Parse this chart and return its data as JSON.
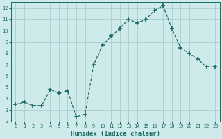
{
  "x": [
    0,
    1,
    2,
    3,
    4,
    5,
    6,
    7,
    8,
    9,
    10,
    11,
    12,
    13,
    14,
    15,
    16,
    17,
    18,
    19,
    20,
    21,
    22,
    23
  ],
  "y": [
    3.5,
    3.7,
    3.4,
    3.4,
    4.8,
    4.5,
    4.7,
    2.4,
    2.6,
    7.0,
    8.7,
    9.5,
    10.2,
    11.0,
    10.7,
    11.0,
    11.8,
    12.2,
    10.2,
    8.5,
    8.0,
    7.5,
    6.8,
    6.8
  ],
  "xlabel": "Humidex (Indice chaleur)",
  "line_color": "#1a6b60",
  "bg_color": "#ceeaea",
  "grid_color": "#a8cece",
  "tick_color": "#1a6b60",
  "label_color": "#1a6b60",
  "xlim": [
    -0.5,
    23.5
  ],
  "ylim": [
    2,
    12.5
  ],
  "yticks": [
    2,
    3,
    4,
    5,
    6,
    7,
    8,
    9,
    10,
    11,
    12
  ],
  "xticks": [
    0,
    1,
    2,
    3,
    4,
    5,
    6,
    7,
    8,
    9,
    10,
    11,
    12,
    13,
    14,
    15,
    16,
    17,
    18,
    19,
    20,
    21,
    22,
    23
  ],
  "tick_fontsize": 5.0,
  "xlabel_fontsize": 6.5
}
